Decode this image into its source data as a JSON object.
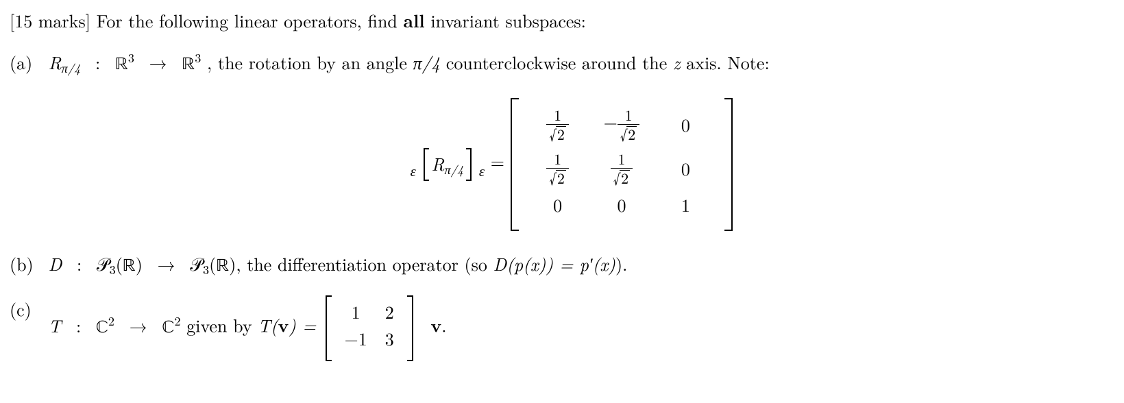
{
  "prompt": {
    "marks_prefix": "[15 marks]",
    "text": " For the following linear operators, find ",
    "bold": "all",
    "suffix": " invariant subspaces:"
  },
  "part_a": {
    "label": "(a)",
    "op": "R",
    "op_sub": "π/4",
    "domain_sym": "ℝ",
    "power": "3",
    "desc_prefix": ", the rotation by an angle ",
    "angle": "π/4",
    "desc_mid": " counterclockwise around the ",
    "axis": "z",
    "desc_suffix": " axis.  Note:"
  },
  "matrix": {
    "eps": "ε",
    "eq": " = ",
    "cells": {
      "r1c1_num": "1",
      "r1c1_den": "2",
      "r1c2_neg": "−",
      "r1c2_num": "1",
      "r1c2_den": "2",
      "r1c3": "0",
      "r2c1_num": "1",
      "r2c1_den": "2",
      "r2c2_num": "1",
      "r2c2_den": "2",
      "r2c3": "0",
      "r3c1": "0",
      "r3c2": "0",
      "r3c3": "1"
    }
  },
  "part_b": {
    "label": "(b)",
    "op": "D",
    "space_sym": "𝒫",
    "space_sub": "3",
    "field": "ℝ",
    "desc": ", the differentiation operator (so ",
    "eq_lhs_D": "D",
    "eq_lhs_p": "p",
    "eq_lhs_x": "x",
    "eq_rhs_p": "p",
    "eq_rhs_prime": "′",
    "eq_rhs_x": "x",
    "closing": ")."
  },
  "part_c": {
    "label": "(c)",
    "op": "T",
    "field": "ℂ",
    "power": "2",
    "given": " given by ",
    "vec": "v",
    "matrix": {
      "a11": "1",
      "a12": "2",
      "a21": "−1",
      "a22": "3"
    },
    "period": "."
  }
}
